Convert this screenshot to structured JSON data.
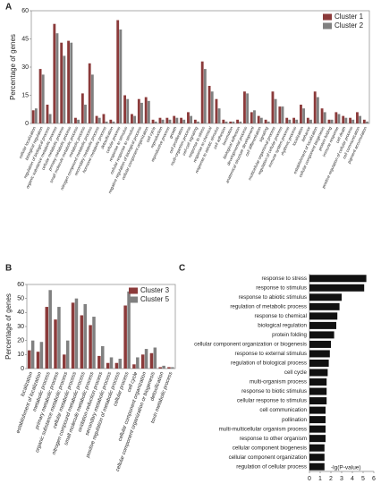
{
  "chart_data": [
    {
      "panel": "A",
      "type": "bar",
      "ylabel": "Percentage of genes",
      "categories": [
        "cellular localization",
        "biological regulation",
        "regulation of biological process",
        "organic substance metabolic process",
        "cellular metabolic process",
        "primary metabolic process",
        "small molecule metabolic process",
        "metabolic process",
        "nitrogen compound metabolic process",
        "secondary metabolic process",
        "hormone metabolic process",
        "detoxification",
        "cellular process",
        "response to stimulus",
        "cellular response to stimulus",
        "negative regulation of biological process",
        "cellular component organization",
        "cell cycle",
        "reproduction",
        "reproductive process",
        "growth",
        "cell proliferation",
        "multi-organism process",
        "cell-cell signaling",
        "response to stress",
        "response to chemical",
        "response to abiotic stimulus",
        "cell adhesion",
        "locomotion",
        "biological adhesion",
        "developmental process",
        "anatomical structure development",
        "cell differentiation",
        "signaling",
        "multicellular organismal process",
        "regulation of cellular process",
        "immune system process",
        "rhythmic process",
        "localization",
        "behavior",
        "establishment of localization",
        "cellular component biogenesis",
        "protein folding",
        "immune response",
        "cell death",
        "positive regulation of cellular process",
        "cell communication",
        "pigment accumulation"
      ],
      "highlighted": [
        2,
        3,
        4,
        5,
        7,
        8,
        9,
        10
      ],
      "highlight_color": "#c0392b",
      "series": [
        {
          "name": "Cluster 1",
          "color": "#8b3a3a",
          "values": [
            7,
            29,
            10,
            53,
            43,
            44,
            3,
            16,
            32,
            4,
            5,
            2,
            55,
            15,
            5,
            13,
            14,
            2,
            3,
            3,
            4,
            3,
            6,
            2,
            33,
            20,
            13,
            2,
            1,
            2,
            17,
            6,
            4,
            2,
            17,
            9,
            3,
            3,
            10,
            3,
            17,
            8,
            2,
            6,
            4,
            3,
            6,
            2
          ]
        },
        {
          "name": "Cluster 2",
          "color": "#808080",
          "values": [
            8,
            26,
            5,
            48,
            36,
            43,
            2,
            10,
            26,
            3,
            1,
            1,
            50,
            13,
            4,
            11,
            12,
            1,
            2,
            2,
            3,
            2,
            4,
            1,
            29,
            17,
            8,
            1,
            1,
            1,
            16,
            7,
            3,
            1,
            13,
            9,
            2,
            2,
            8,
            2,
            14,
            6,
            2,
            5,
            3,
            2,
            4,
            1
          ]
        }
      ],
      "ylim": [
        0,
        60
      ],
      "yticks": [
        0,
        15,
        30,
        45,
        60
      ],
      "legend": "top-right"
    },
    {
      "panel": "B",
      "type": "bar",
      "ylabel": "Percentage of genes",
      "categories": [
        "localization",
        "establishment of localization",
        "metabolic process",
        "primary metabolic process",
        "organic substance metabolic process",
        "cellular metabolic process",
        "nitrogen compound metabolic process",
        "small molecule metabolic process",
        "oxidation-reduction process",
        "secondary metabolic process",
        "positive regulation of metabolic process",
        "cellular process",
        "cell cycle",
        "cellular component organization",
        "cellular component organization or biogenesis",
        "detoxification",
        "toxin metabolic process"
      ],
      "highlighted": [
        3,
        4,
        5,
        6,
        7,
        9,
        10,
        16
      ],
      "highlight_color": "#c0392b",
      "series": [
        {
          "name": "Cluster 3",
          "color": "#8b3a3a",
          "values": [
            13,
            12,
            44,
            35,
            10,
            47,
            38,
            31,
            9,
            4,
            4,
            45,
            3,
            10,
            11,
            1,
            1
          ]
        },
        {
          "name": "Cluster 5",
          "color": "#808080",
          "values": [
            20,
            19,
            56,
            44,
            20,
            50,
            46,
            37,
            16,
            8,
            7,
            55,
            8,
            14,
            15,
            2,
            1
          ]
        }
      ],
      "ylim": [
        0,
        60
      ],
      "yticks": [
        0,
        10,
        20,
        30,
        40,
        50,
        60
      ],
      "legend": "top-right"
    },
    {
      "panel": "C",
      "type": "hbar",
      "xlabel": "-lg(P-value)",
      "color": "#111111",
      "categories": [
        "response to stress",
        "response to stimulus",
        "response to abiotic stimulus",
        "regulation of metabolic process",
        "response to chemical",
        "biological regulation",
        "protein folding",
        "cellular component organization or biogenesis",
        "response to external stimulus",
        "regulation of biological process",
        "cell cycle",
        "multi-organism process",
        "response to biotic stimulus",
        "cellular response to stimulus",
        "cell communication",
        "pollination",
        "multi-multicellular organism process",
        "response to other organism",
        "cellular component biogenesis",
        "cellular component organization",
        "regulation of cellular process"
      ],
      "highlighted": [
        3
      ],
      "highlight_color": "#c0392b",
      "values": [
        5.3,
        5.1,
        3.0,
        2.8,
        2.6,
        2.5,
        2.3,
        2.0,
        1.9,
        1.8,
        1.7,
        1.6,
        1.6,
        1.6,
        1.5,
        1.5,
        1.5,
        1.5,
        1.4,
        1.4,
        1.4
      ],
      "xlim": [
        0,
        6
      ],
      "xticks": [
        0,
        1,
        2,
        3,
        4,
        5,
        6
      ]
    }
  ]
}
